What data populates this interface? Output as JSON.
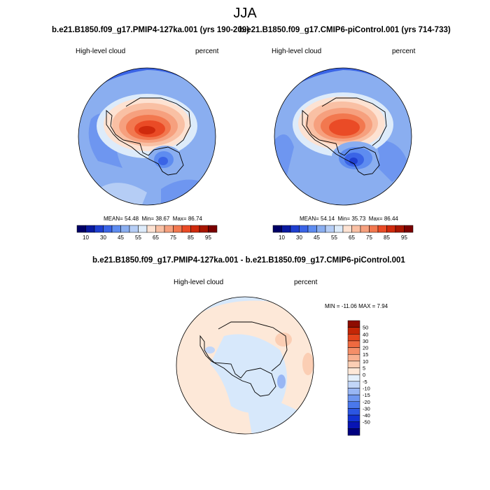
{
  "season": "JJA",
  "panels": [
    {
      "title": "b.e21.B1850.f09_g17.PMIP4-127ka.001 (yrs 190-209)",
      "variable": "High-level cloud",
      "units": "percent",
      "mean_label": "MEAN=",
      "mean": "54.48",
      "min_label": "Min=",
      "min": "38.67",
      "max_label": "Max=",
      "max": "86.74"
    },
    {
      "title": "b.e21.B1850.f09_g17.CMIP6-piControl.001 (yrs 714-733)",
      "variable": "High-level cloud",
      "units": "percent",
      "mean_label": "MEAN=",
      "mean": "54.14",
      "min_label": "Min=",
      "min": "35.73",
      "max_label": "Max=",
      "max": "86.44"
    }
  ],
  "abs_colorbar": {
    "colors": [
      "#000066",
      "#0a1aa0",
      "#1f3fd0",
      "#3a64e6",
      "#5e8cf0",
      "#8aaef0",
      "#b5cdf5",
      "#ddebfa",
      "#fde2d2",
      "#f9c0a4",
      "#f6a07e",
      "#f2784f",
      "#ea4b26",
      "#cf2a0d",
      "#a81600",
      "#7a0000"
    ],
    "tick_labels": [
      "10",
      "30",
      "45",
      "55",
      "65",
      "75",
      "85",
      "95"
    ]
  },
  "diff": {
    "title": "b.e21.B1850.f09_g17.PMIP4-127ka.001 - b.e21.B1850.f09_g17.CMIP6-piControl.001",
    "variable": "High-level cloud",
    "units": "percent",
    "range_text": "MIN = -11.06 MAX =   7.94",
    "colorbar": {
      "colors": [
        "#000080",
        "#0814b4",
        "#1232d2",
        "#2c56e2",
        "#4a78ec",
        "#6e96f0",
        "#98b6f4",
        "#c2d6f8",
        "#e4f0fc",
        "#fde8d8",
        "#fbceb4",
        "#f8b090",
        "#f48e68",
        "#ef6a40",
        "#e4441c",
        "#c42606",
        "#8e0c00"
      ],
      "tick_labels": [
        "50",
        "40",
        "30",
        "20",
        "15",
        "10",
        "5",
        "0",
        "-5",
        "-10",
        "-15",
        "-20",
        "-30",
        "-40",
        "-50"
      ]
    }
  },
  "colors": {
    "map_ocean_base": "#6e96f0",
    "map_warm_core": "#e03a12",
    "diff_base": "#fde8d8",
    "diff_cool": "#d7e8fb"
  }
}
